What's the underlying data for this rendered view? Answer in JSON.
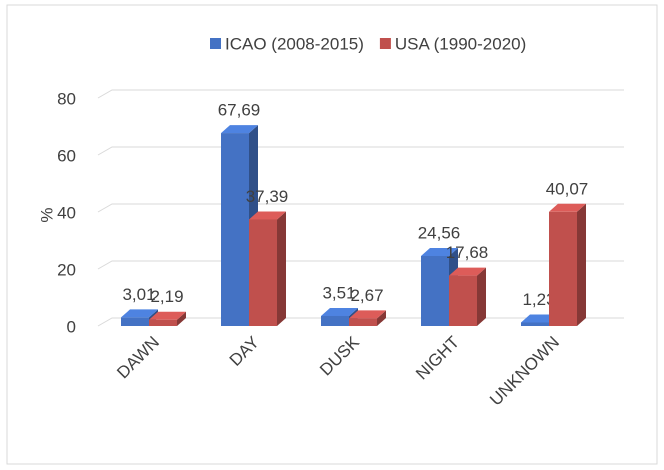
{
  "chart_data": {
    "type": "bar3d",
    "categories": [
      "DAWN",
      "DAY",
      "DUSK",
      "NIGHT",
      "UNKNOWN"
    ],
    "series": [
      {
        "name": "ICAO (2008-2015)",
        "color": "#4472c4",
        "values": [
          3.01,
          67.69,
          3.51,
          24.56,
          1.23
        ],
        "value_labels": [
          "3,01",
          "67,69",
          "3,51",
          "24,56",
          "1,23"
        ]
      },
      {
        "name": "USA (1990-2020)",
        "color": "#c0504d",
        "values": [
          2.19,
          37.39,
          2.67,
          17.68,
          40.07
        ],
        "value_labels": [
          "2,19",
          "37,39",
          "2,67",
          "17,68",
          "40,07"
        ]
      }
    ],
    "y_label": "%",
    "ylim": [
      0,
      80
    ],
    "yticks": [
      0,
      20,
      40,
      60,
      80
    ],
    "grid": true,
    "legend": "top"
  }
}
